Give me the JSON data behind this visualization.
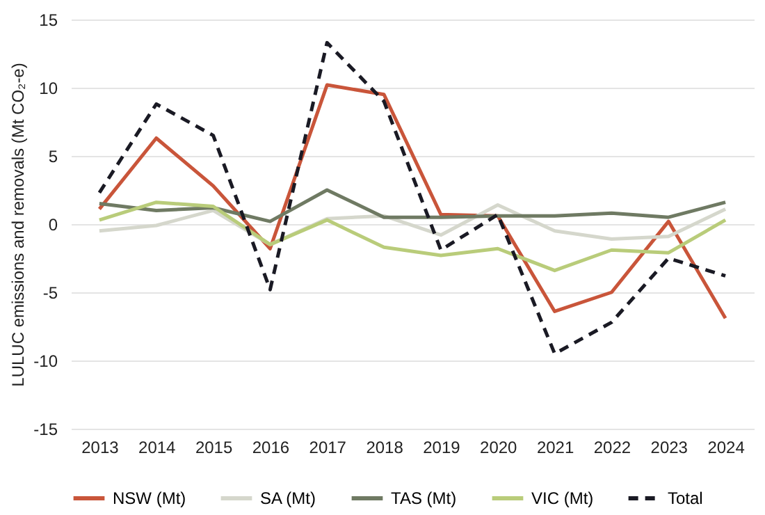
{
  "chart_data": {
    "type": "line",
    "ylabel": "LULUC emissions and removals (Mt CO₂-e)",
    "categories": [
      "2013",
      "2014",
      "2015",
      "2016",
      "2017",
      "2018",
      "2019",
      "2020",
      "2021",
      "2022",
      "2023",
      "2024"
    ],
    "ylim": [
      -15,
      15
    ],
    "yticks": [
      -15,
      -10,
      -5,
      0,
      5,
      10,
      15
    ],
    "grid": "y",
    "legend": "bottom",
    "series": [
      {
        "name": "NSW (Mt)",
        "color": "#c9553a",
        "values": [
          1.1,
          6.3,
          2.8,
          -1.8,
          10.2,
          9.5,
          0.7,
          0.6,
          -6.4,
          -5.0,
          0.2,
          -6.9
        ]
      },
      {
        "name": "SA (Mt)",
        "color": "#d5d7cc",
        "values": [
          -0.5,
          -0.1,
          1.0,
          -1.5,
          0.4,
          0.6,
          -0.8,
          1.4,
          -0.5,
          -1.1,
          -0.9,
          1.1
        ]
      },
      {
        "name": "TAS (Mt)",
        "color": "#6f7a63",
        "values": [
          1.5,
          1.0,
          1.2,
          0.2,
          2.5,
          0.5,
          0.5,
          0.6,
          0.6,
          0.8,
          0.5,
          1.6
        ]
      },
      {
        "name": "VIC (Mt)",
        "color": "#b9cc7a",
        "values": [
          0.3,
          1.6,
          1.3,
          -1.5,
          0.3,
          -1.7,
          -2.3,
          -1.8,
          -3.4,
          -1.9,
          -2.1,
          0.3
        ]
      },
      {
        "name": "Total",
        "color": "#1a1a24",
        "line_style": "dashed",
        "values": [
          2.3,
          8.8,
          6.5,
          -4.8,
          13.3,
          9.0,
          -1.9,
          0.7,
          -9.5,
          -7.2,
          -2.5,
          -3.8
        ]
      }
    ]
  }
}
